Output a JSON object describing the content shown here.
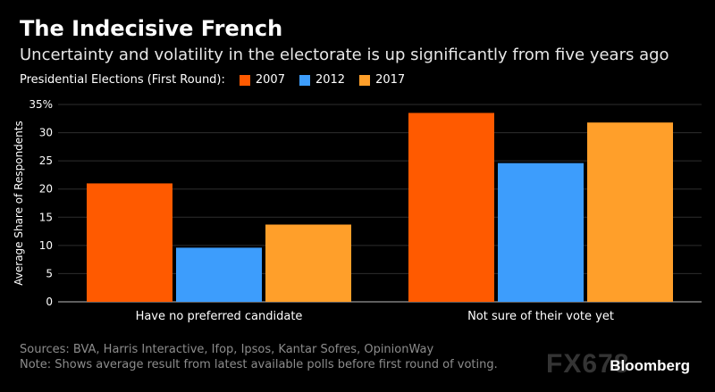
{
  "title": "The Indecisive French",
  "subtitle": "Uncertainty and volatility in the electorate is up significantly from five years ago",
  "legend": {
    "label": "Presidential Elections (First Round):",
    "items": [
      {
        "name": "2007",
        "color": "#ff5a00"
      },
      {
        "name": "2012",
        "color": "#3d9dfc"
      },
      {
        "name": "2017",
        "color": "#ff9f2a"
      }
    ]
  },
  "footer": {
    "sources": "Sources: BVA, Harris Interactive, Ifop, Ipsos, Kantar Sofres, OpinionWay",
    "note": "Note: Shows average result from latest available polls before first round of voting."
  },
  "brand": "Bloomberg",
  "watermark": "FX678",
  "chart_data": {
    "type": "bar",
    "categories": [
      "Have no preferred candidate",
      "Not sure of their vote yet"
    ],
    "series": [
      {
        "name": "2007",
        "values": [
          21,
          33.5
        ],
        "color": "#ff5a00"
      },
      {
        "name": "2012",
        "values": [
          9.6,
          24.6
        ],
        "color": "#3d9dfc"
      },
      {
        "name": "2017",
        "values": [
          13.7,
          31.8
        ],
        "color": "#ff9f2a"
      }
    ],
    "xlabel": "",
    "ylabel": "Average Share of Respondents",
    "ylim": [
      0,
      35
    ],
    "yticks": [
      {
        "value": 0,
        "label": "0"
      },
      {
        "value": 5,
        "label": "5"
      },
      {
        "value": 10,
        "label": "10"
      },
      {
        "value": 15,
        "label": "15"
      },
      {
        "value": 20,
        "label": "20"
      },
      {
        "value": 25,
        "label": "25"
      },
      {
        "value": 30,
        "label": "30"
      },
      {
        "value": 35,
        "label": "35%"
      }
    ],
    "grid": true,
    "legend_position": "top-left"
  }
}
